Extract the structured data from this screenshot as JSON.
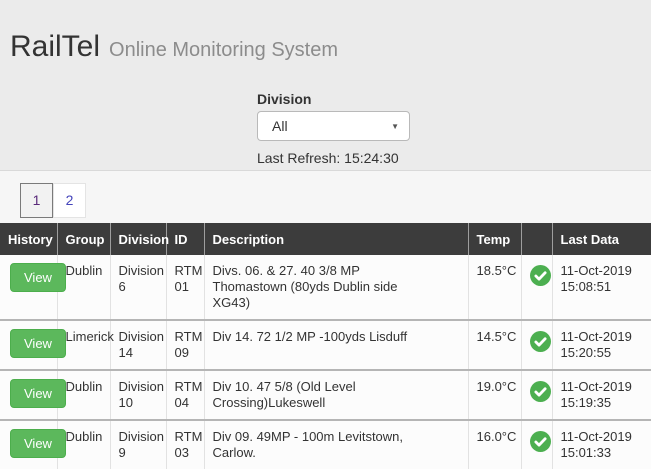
{
  "header": {
    "brand": "RailTel",
    "subtitle": "Online Monitoring System"
  },
  "filter": {
    "label": "Division",
    "selected_option": "All"
  },
  "last_refresh": "Last Refresh: 15:24:30",
  "pagination": {
    "pages": [
      "1",
      "2"
    ],
    "current": "1"
  },
  "table": {
    "columns": [
      "History",
      "Group",
      "Division",
      "ID",
      "Description",
      "Temp",
      "",
      "Last Data"
    ],
    "view_label": "View",
    "rows": [
      {
        "group": "Dublin",
        "division": "Division 6",
        "id": "RTM 01",
        "description": "Divs. 06. & 27. 40 3/8 MP Thomastown (80yds Dublin side XG43)",
        "temp": "18.5°C",
        "status": "ok",
        "last_data": "11-Oct-2019 15:08:51"
      },
      {
        "group": "Limerick",
        "division": "Division 14",
        "id": "RTM 09",
        "description": "Div 14. 72 1/2 MP -100yds Lisduff",
        "temp": "14.5°C",
        "status": "ok",
        "last_data": "11-Oct-2019 15:20:55"
      },
      {
        "group": "Dublin",
        "division": "Division 10",
        "id": "RTM 04",
        "description": "Div 10. 47 5/8 (Old Level Crossing)Lukeswell",
        "temp": "19.0°C",
        "status": "ok",
        "last_data": "11-Oct-2019 15:19:35"
      },
      {
        "group": "Dublin",
        "division": "Division 9",
        "id": "RTM 03",
        "description": "Div 09. 49MP - 100m Levitstown, Carlow.",
        "temp": "16.0°C",
        "status": "ok",
        "last_data": "11-Oct-2019 15:01:33"
      }
    ]
  },
  "colors": {
    "accent_green": "#5cb85c",
    "status_ok_green": "#4caf50",
    "table_header_bg": "#3c3c3c",
    "page_bg": "#ebebeb"
  }
}
